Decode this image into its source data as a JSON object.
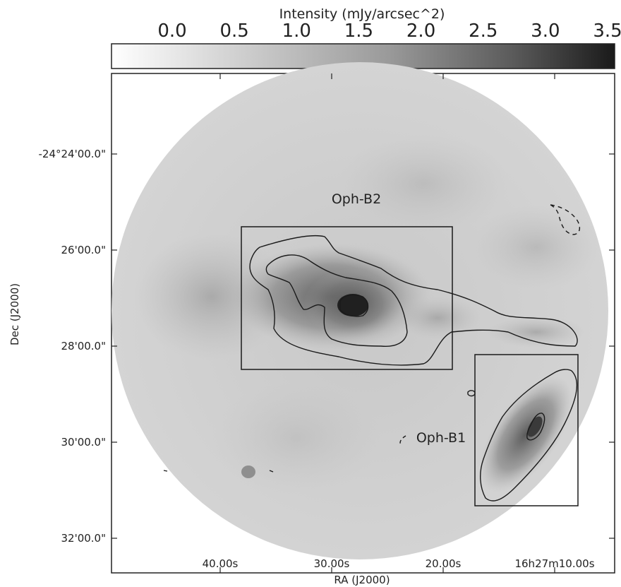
{
  "chart_data": {
    "type": "heatmap",
    "colorbar": {
      "label": "Intensity (mJy/arcsec^2)",
      "ticks": [
        "0.0",
        "0.5",
        "1.0",
        "1.5",
        "2.0",
        "2.5",
        "3.0",
        "3.5"
      ],
      "range": [
        0.0,
        3.5
      ],
      "colormap": "grayscale (white to black)"
    },
    "xlabel": "RA (J2000)",
    "ylabel": "Dec (J2000)",
    "x_ticks": [
      "40.00s",
      "30.00s",
      "20.00s",
      "16h27m10.00s"
    ],
    "y_ticks": [
      "-24°24'00.0\"",
      "26'00.0\"",
      "28'00.0\"",
      "30'00.0\"",
      "32'00.0\""
    ],
    "annotations": [
      {
        "label": "Oph-B2"
      },
      {
        "label": "Oph-B1"
      }
    ],
    "regions": [
      {
        "label": "Oph-B2",
        "ra_range_s": [
          "38.0",
          "19.5"
        ],
        "dec_range": [
          "-24°25'30\"",
          "-24°28'30\""
        ]
      },
      {
        "label": "Oph-B1",
        "ra_range_s": [
          "18.0",
          "11.0"
        ],
        "dec_range": [
          "-24°28'10\"",
          "-24°31'20\""
        ]
      }
    ],
    "peak_intensity": 3.5,
    "legend": "none",
    "grid": false
  }
}
